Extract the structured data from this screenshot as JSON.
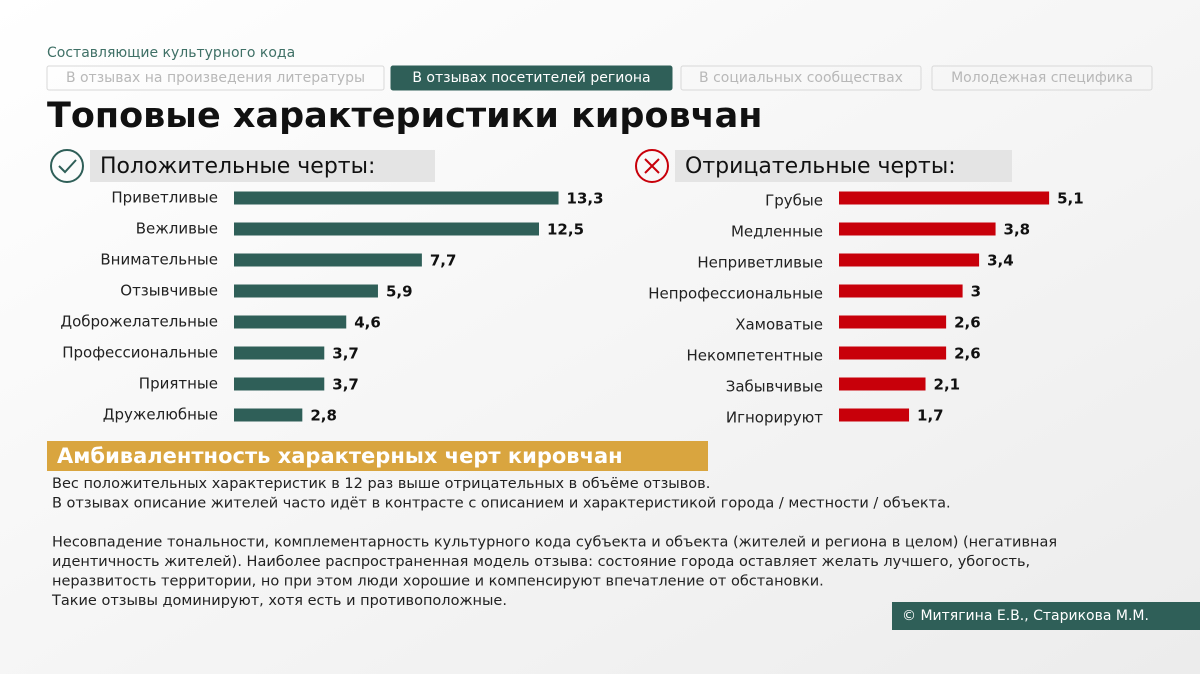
{
  "header": {
    "kicker": "Составляющие культурного кода",
    "tabs": [
      "В отзывах на произведения литературы",
      "В отзывах посетителей региона",
      "В социальных сообществах",
      "Молодежная специфика"
    ],
    "active_tab": 1,
    "title": "Топовые характеристики кировчан"
  },
  "chart_data": [
    {
      "type": "bar",
      "title": "Положительные черты:",
      "color": "#2f5f58",
      "categories": [
        "Приветливые",
        "Вежливые",
        "Внимательные",
        "Отзывчивые",
        "Доброжелательные",
        "Профессиональные",
        "Приятные",
        "Дружелюбные"
      ],
      "values": [
        13.3,
        12.5,
        7.7,
        5.9,
        4.6,
        3.7,
        3.7,
        2.8
      ],
      "value_labels": [
        "13,3",
        "12,5",
        "7,7",
        "5,9",
        "4,6",
        "3,7",
        "3,7",
        "2,8"
      ]
    },
    {
      "type": "bar",
      "title": "Отрицательные черты:",
      "color": "#c8000a",
      "categories": [
        "Грубые",
        "Медленные",
        "Неприветливые",
        "Непрофессиональные",
        "Хамоватые",
        "Некомпетентные",
        "Забывчивые",
        "Игнорируют"
      ],
      "values": [
        5.1,
        3.8,
        3.4,
        3,
        2.6,
        2.6,
        2.1,
        1.7
      ],
      "value_labels": [
        "5,1",
        "3,8",
        "3,4",
        "3",
        "2,6",
        "2,6",
        "2,1",
        "1,7"
      ]
    }
  ],
  "section": {
    "title": "Амбивалентность характерных черт кировчан",
    "lines": [
      "Вес положительных характеристик в 12 раз выше отрицательных в объёме отзывов.",
      "В отзывах описание жителей часто идёт в контрасте с описанием и характеристикой города / местности / объекта.",
      "Несовпадение тональности, комплементарность культурного кода субъекта и объекта (жителей и региона в целом) (негативная",
      "идентичность жителей). Наиболее распространенная модель отзыва: состояние города оставляет желать лучшего, убогость,",
      "неразвитость территории, но при этом люди хорошие и компенсируют впечатление от обстановки.",
      "Такие отзывы доминируют, хотя есть и противоположные."
    ]
  },
  "credit": "© Митягина Е.В., Старикова М.М."
}
